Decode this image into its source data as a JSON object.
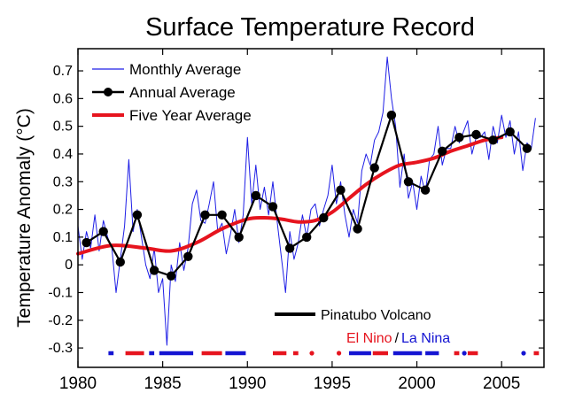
{
  "chart_data": {
    "type": "line",
    "title": "Surface Temperature Record",
    "xlabel": "",
    "ylabel": "Temperature Anomaly (°C)",
    "xlim": [
      1980,
      2007.5
    ],
    "ylim": [
      -0.37,
      0.78
    ],
    "x_ticks": [
      1980,
      1985,
      1990,
      1995,
      2000,
      2005
    ],
    "y_ticks": [
      -0.3,
      -0.2,
      -0.1,
      0,
      0.1,
      0.2,
      0.3,
      0.4,
      0.5,
      0.6,
      0.7
    ],
    "legend_position": "top-left",
    "series": [
      {
        "name": "Monthly Average",
        "color": "#1f1fe6",
        "style": "thin-line",
        "x": [
          1980.0,
          1980.25,
          1980.5,
          1980.75,
          1981.0,
          1981.25,
          1981.5,
          1981.75,
          1982.0,
          1982.25,
          1982.5,
          1982.75,
          1983.0,
          1983.25,
          1983.5,
          1983.75,
          1984.0,
          1984.25,
          1984.5,
          1984.75,
          1985.0,
          1985.25,
          1985.5,
          1985.75,
          1986.0,
          1986.25,
          1986.5,
          1986.75,
          1987.0,
          1987.25,
          1987.5,
          1987.75,
          1988.0,
          1988.25,
          1988.5,
          1988.75,
          1989.0,
          1989.25,
          1989.5,
          1989.75,
          1990.0,
          1990.25,
          1990.5,
          1990.75,
          1991.0,
          1991.25,
          1991.5,
          1991.75,
          1992.0,
          1992.25,
          1992.5,
          1992.75,
          1993.0,
          1993.25,
          1993.5,
          1993.75,
          1994.0,
          1994.25,
          1994.5,
          1994.75,
          1995.0,
          1995.25,
          1995.5,
          1995.75,
          1996.0,
          1996.25,
          1996.5,
          1996.75,
          1997.0,
          1997.25,
          1997.5,
          1997.75,
          1998.0,
          1998.25,
          1998.5,
          1998.75,
          1999.0,
          1999.25,
          1999.5,
          1999.75,
          2000.0,
          2000.25,
          2000.5,
          2000.75,
          2001.0,
          2001.25,
          2001.5,
          2001.75,
          2002.0,
          2002.25,
          2002.5,
          2002.75,
          2003.0,
          2003.25,
          2003.5,
          2003.75,
          2004.0,
          2004.25,
          2004.5,
          2004.75,
          2005.0,
          2005.25,
          2005.5,
          2005.75,
          2006.0,
          2006.25,
          2006.5,
          2006.75,
          2007.0
        ],
        "values": [
          0.14,
          0.02,
          0.12,
          0.06,
          0.18,
          0.05,
          0.16,
          0.1,
          0.06,
          -0.1,
          0.02,
          0.14,
          0.38,
          0.12,
          0.2,
          0.1,
          0.0,
          -0.05,
          0.06,
          -0.1,
          -0.05,
          -0.29,
          0.0,
          -0.06,
          0.08,
          -0.02,
          0.06,
          0.22,
          0.27,
          0.16,
          0.15,
          0.22,
          0.3,
          0.12,
          0.15,
          0.04,
          0.11,
          0.2,
          0.08,
          0.18,
          0.46,
          0.22,
          0.36,
          0.2,
          0.28,
          0.18,
          0.3,
          0.16,
          0.03,
          -0.1,
          0.12,
          0.02,
          0.08,
          0.18,
          0.1,
          0.2,
          0.22,
          0.14,
          0.2,
          0.25,
          0.36,
          0.22,
          0.3,
          0.18,
          0.1,
          0.2,
          0.15,
          0.34,
          0.4,
          0.36,
          0.45,
          0.48,
          0.55,
          0.75,
          0.6,
          0.5,
          0.28,
          0.4,
          0.24,
          0.3,
          0.2,
          0.32,
          0.26,
          0.38,
          0.4,
          0.5,
          0.36,
          0.42,
          0.42,
          0.5,
          0.44,
          0.48,
          0.52,
          0.4,
          0.46,
          0.46,
          0.48,
          0.38,
          0.5,
          0.44,
          0.54,
          0.46,
          0.52,
          0.4,
          0.48,
          0.34,
          0.44,
          0.42,
          0.53
        ]
      },
      {
        "name": "Annual Average",
        "color": "#000000",
        "style": "line-with-markers",
        "x": [
          1980.5,
          1981.5,
          1982.5,
          1983.5,
          1984.5,
          1985.5,
          1986.5,
          1987.5,
          1988.5,
          1989.5,
          1990.5,
          1991.5,
          1992.5,
          1993.5,
          1994.5,
          1995.5,
          1996.5,
          1997.5,
          1998.5,
          1999.5,
          2000.5,
          2001.5,
          2002.5,
          2003.5,
          2004.5,
          2005.5,
          2006.5
        ],
        "values": [
          0.08,
          0.12,
          0.01,
          0.18,
          -0.02,
          -0.04,
          0.03,
          0.18,
          0.18,
          0.1,
          0.25,
          0.21,
          0.06,
          0.1,
          0.17,
          0.27,
          0.13,
          0.35,
          0.54,
          0.3,
          0.27,
          0.41,
          0.46,
          0.47,
          0.45,
          0.48,
          0.42
        ]
      },
      {
        "name": "Five Year Average",
        "color": "#e6141e",
        "style": "thick-line",
        "x": [
          1980,
          1982,
          1984,
          1985.5,
          1987,
          1988.5,
          1990,
          1991,
          1992,
          1993,
          1994,
          1995,
          1996,
          1997,
          1998,
          1999,
          2000,
          2001,
          2002,
          2003,
          2004,
          2005
        ],
        "values": [
          0.04,
          0.07,
          0.06,
          0.05,
          0.08,
          0.13,
          0.165,
          0.17,
          0.165,
          0.155,
          0.16,
          0.19,
          0.24,
          0.29,
          0.33,
          0.36,
          0.37,
          0.385,
          0.41,
          0.43,
          0.45,
          0.46
        ]
      }
    ],
    "annotations": {
      "pinatubo_label": "Pinatubo Volcano",
      "el_nino_label": "El Nino",
      "separator": "/",
      "la_nina_label": "La Nina"
    },
    "enso_events": [
      {
        "type": "la_nina",
        "start": 1981.8,
        "end": 1982.1
      },
      {
        "type": "el_nino",
        "start": 1982.8,
        "end": 1983.9
      },
      {
        "type": "la_nina",
        "start": 1984.2,
        "end": 1984.5
      },
      {
        "type": "la_nina",
        "start": 1984.8,
        "end": 1986.8
      },
      {
        "type": "el_nino",
        "start": 1987.3,
        "end": 1988.5
      },
      {
        "type": "la_nina",
        "start": 1988.7,
        "end": 1989.9
      },
      {
        "type": "el_nino",
        "start": 1991.5,
        "end": 1992.3
      },
      {
        "type": "el_nino",
        "start": 1992.7,
        "end": 1993.0
      },
      {
        "type": "el_nino",
        "start": 1993.7,
        "end": 1993.9
      },
      {
        "type": "el_nino",
        "start": 1995.3,
        "end": 1995.5
      },
      {
        "type": "la_nina",
        "start": 1996.0,
        "end": 1997.3
      },
      {
        "type": "el_nino",
        "start": 1997.4,
        "end": 1998.3
      },
      {
        "type": "la_nina",
        "start": 1998.6,
        "end": 2000.3
      },
      {
        "type": "la_nina",
        "start": 2000.5,
        "end": 2001.3
      },
      {
        "type": "el_nino",
        "start": 2002.2,
        "end": 2002.5
      },
      {
        "type": "la_nina",
        "start": 2002.7,
        "end": 2002.9
      },
      {
        "type": "el_nino",
        "start": 2003.0,
        "end": 2003.6
      },
      {
        "type": "la_nina",
        "start": 2006.2,
        "end": 2006.4
      },
      {
        "type": "el_nino",
        "start": 2006.9,
        "end": 2007.2
      }
    ],
    "colors": {
      "monthly": "#1f1fe6",
      "annual": "#000000",
      "five_year": "#e6141e",
      "el_nino": "#e6141e",
      "la_nina": "#1414d2"
    }
  }
}
